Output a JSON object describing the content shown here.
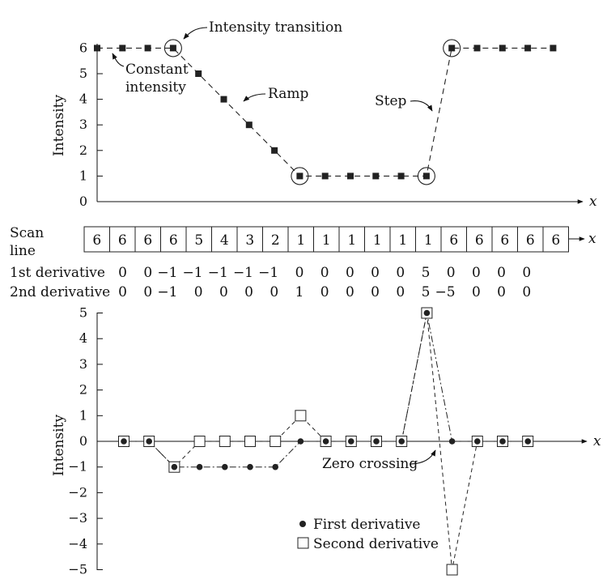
{
  "chart_data": [
    {
      "type": "line",
      "ylabel": "Intensity",
      "xlabel": "x",
      "ylim": [
        0,
        6
      ],
      "yticks": [
        0,
        1,
        2,
        3,
        4,
        5,
        6
      ],
      "series": [
        {
          "values": [
            6,
            6,
            6,
            6,
            5,
            4,
            3,
            2,
            1,
            1,
            1,
            1,
            1,
            1,
            6,
            6,
            6,
            6,
            6
          ]
        }
      ],
      "annotations": {
        "transition": "Intensity transition",
        "constant_1": "Constant",
        "constant_2": "intensity",
        "ramp": "Ramp",
        "step": "Step"
      }
    },
    {
      "type": "table",
      "scan_label_1": "Scan",
      "scan_label_2": "line",
      "x_label": "x",
      "scan_line": [
        6,
        6,
        6,
        6,
        5,
        4,
        3,
        2,
        1,
        1,
        1,
        1,
        1,
        1,
        6,
        6,
        6,
        6,
        6
      ],
      "first_label": "1st derivative",
      "first": [
        "0",
        "0",
        "−1",
        "−1",
        "−1",
        "−1",
        "−1",
        "0",
        "0",
        "0",
        "0",
        "0",
        "5",
        "0",
        "0",
        "0",
        "0"
      ],
      "second_label": "2nd derivative",
      "second": [
        "0",
        "0",
        "−1",
        "0",
        "0",
        "0",
        "0",
        "1",
        "0",
        "0",
        "0",
        "0",
        "5",
        "−5",
        "0",
        "0",
        "0"
      ]
    },
    {
      "type": "line",
      "ylabel": "Intensity",
      "xlabel": "x",
      "ylim": [
        -5,
        5
      ],
      "yticks": [
        5,
        4,
        3,
        2,
        1,
        0,
        -1,
        -2,
        -3,
        -4,
        -5
      ],
      "ytick_labels": [
        "5",
        "4",
        "3",
        "2",
        "1",
        "0",
        "−1",
        "−2",
        "−3",
        "−4",
        "−5"
      ],
      "series": [
        {
          "name": "First derivative",
          "marker": "dot",
          "values": [
            0,
            0,
            -1,
            -1,
            -1,
            -1,
            -1,
            0,
            0,
            0,
            0,
            0,
            5,
            0,
            0,
            0,
            0
          ]
        },
        {
          "name": "Second derivative",
          "marker": "square",
          "values": [
            0,
            0,
            -1,
            0,
            0,
            0,
            0,
            1,
            0,
            0,
            0,
            0,
            5,
            -5,
            0,
            0,
            0
          ]
        }
      ],
      "annotations": {
        "zero_crossing": "Zero crossing"
      }
    }
  ]
}
